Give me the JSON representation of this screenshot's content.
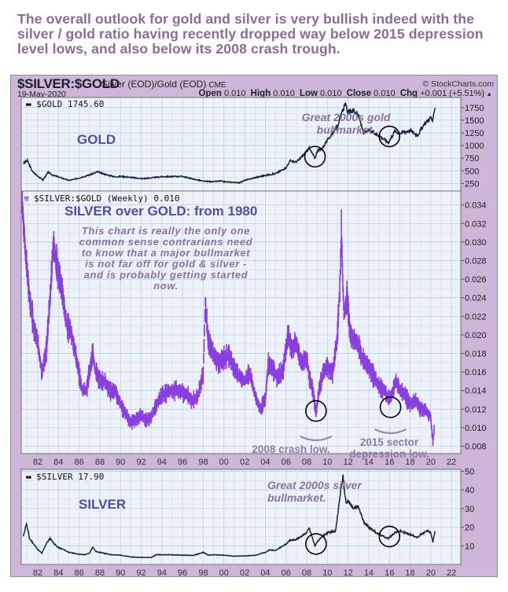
{
  "headline": "The overall outlook for gold and silver is very bullish indeed with the silver / gold ratio having recently dropped way below 2015 depression level lows, and also below its 2008 crash trough.",
  "header": {
    "symbol": "$SILVER:$GOLD",
    "description": "Silver (EOD)/Gold (EOD)",
    "exchange": "CME",
    "credit": "© StockCharts.com",
    "date": "19-May-2020",
    "open_label": "Open",
    "open": "0.010",
    "high_label": "High",
    "high": "0.010",
    "low_label": "Low",
    "low": "0.010",
    "close_label": "Close",
    "close": "0.010",
    "chg_label": "Chg",
    "chg": "+0.001 (+5.51%)",
    "chg_icon": "up-triangle-icon"
  },
  "colors": {
    "frame": "#cdb6d7",
    "plot_bg": "#eef2f8",
    "grid": "#a9d0e3",
    "price_line": "#18243f",
    "ratio_bars": "#8a3fe0",
    "headline": "#8a6c94",
    "panel_label": "#4e4fa0",
    "annotation": "#8a72a0"
  },
  "chart_data": [
    {
      "type": "line",
      "panel": "gold",
      "legend": "$GOLD 1745.60",
      "label": "GOLD",
      "annotation": "Great 2000s gold bullmarket.",
      "y_ticks": [
        "250",
        "500",
        "750",
        "1000",
        "1250",
        "1500",
        "1750"
      ],
      "ylim": [
        100,
        1950
      ],
      "x": [
        1980.6,
        1981.0,
        1981.5,
        1982.0,
        1982.5,
        1983.0,
        1983.5,
        1984.0,
        1985.0,
        1985.5,
        1986.0,
        1987.0,
        1987.8,
        1988.5,
        1989.5,
        1990.0,
        1991.0,
        1992.0,
        1993.0,
        1994.0,
        1995.0,
        1996.0,
        1997.0,
        1998.0,
        1999.0,
        1999.7,
        2000.0,
        2001.0,
        2001.5,
        2002.0,
        2003.0,
        2004.0,
        2005.0,
        2006.0,
        2006.4,
        2007.0,
        2008.0,
        2008.2,
        2008.8,
        2009.0,
        2009.5,
        2010.0,
        2011.0,
        2011.7,
        2012.0,
        2012.5,
        2013.0,
        2013.5,
        2014.0,
        2015.0,
        2015.9,
        2016.5,
        2017.0,
        2018.0,
        2018.7,
        2019.0,
        2019.7,
        2020.0,
        2020.2,
        2020.4
      ],
      "values": [
        650,
        700,
        480,
        400,
        320,
        470,
        410,
        380,
        310,
        330,
        360,
        420,
        480,
        430,
        380,
        390,
        370,
        345,
        360,
        385,
        385,
        390,
        340,
        295,
        285,
        300,
        285,
        270,
        265,
        310,
        365,
        410,
        445,
        560,
        700,
        670,
        880,
        960,
        750,
        880,
        950,
        1100,
        1400,
        1830,
        1650,
        1700,
        1600,
        1250,
        1300,
        1200,
        1060,
        1280,
        1250,
        1300,
        1200,
        1300,
        1500,
        1550,
        1480,
        1745.6
      ]
    },
    {
      "type": "bar",
      "subtype": "weekly-hlc",
      "panel": "ratio",
      "legend": "$SILVER:$GOLD (Weekly) 0.010",
      "label": "SILVER over GOLD: from 1980",
      "annotation": "This chart is really the only one common sense contrarians need to know that a major bullmarket is not far off for gold & silver - and is probably getting started now.",
      "annotation_2008": "2008 crash low.",
      "annotation_2015": "2015 sector depression low.",
      "y_ticks": [
        "0.008",
        "0.010",
        "0.012",
        "0.014",
        "0.016",
        "0.018",
        "0.020",
        "0.022",
        "0.024",
        "0.026",
        "0.028",
        "0.030",
        "0.032",
        "0.034"
      ],
      "ylim": [
        0.0072,
        0.0355
      ],
      "x": [
        1980.5,
        1980.8,
        1981.2,
        1981.6,
        1982.0,
        1982.4,
        1982.8,
        1983.2,
        1983.5,
        1983.9,
        1984.3,
        1984.8,
        1985.3,
        1985.8,
        1986.3,
        1986.7,
        1987.0,
        1987.3,
        1987.6,
        1988.0,
        1988.5,
        1989.0,
        1989.5,
        1990.0,
        1990.5,
        1991.0,
        1991.5,
        1992.0,
        1992.5,
        1993.0,
        1993.5,
        1994.0,
        1994.5,
        1995.0,
        1995.5,
        1996.0,
        1996.5,
        1997.0,
        1997.5,
        1998.0,
        1998.2,
        1998.5,
        1999.0,
        1999.5,
        2000.0,
        2000.5,
        2001.0,
        2001.5,
        2002.0,
        2002.5,
        2003.0,
        2003.5,
        2004.0,
        2004.3,
        2004.8,
        2005.2,
        2005.7,
        2006.2,
        2006.5,
        2007.0,
        2007.5,
        2008.0,
        2008.3,
        2008.6,
        2008.9,
        2009.2,
        2009.6,
        2010.0,
        2010.5,
        2010.9,
        2011.2,
        2011.35,
        2011.6,
        2011.9,
        2012.2,
        2012.6,
        2013.0,
        2013.3,
        2013.7,
        2014.0,
        2014.5,
        2015.0,
        2015.5,
        2015.9,
        2016.2,
        2016.6,
        2017.0,
        2017.5,
        2018.0,
        2018.5,
        2019.0,
        2019.4,
        2019.8,
        2020.0,
        2020.2,
        2020.35
      ],
      "values": [
        0.034,
        0.029,
        0.024,
        0.021,
        0.019,
        0.016,
        0.018,
        0.024,
        0.03,
        0.027,
        0.025,
        0.021,
        0.02,
        0.017,
        0.014,
        0.014,
        0.016,
        0.018,
        0.016,
        0.015,
        0.015,
        0.014,
        0.014,
        0.0125,
        0.0115,
        0.0105,
        0.011,
        0.0112,
        0.0108,
        0.0112,
        0.0125,
        0.0135,
        0.0138,
        0.014,
        0.014,
        0.0138,
        0.0135,
        0.0128,
        0.0135,
        0.016,
        0.0235,
        0.019,
        0.018,
        0.017,
        0.0175,
        0.0178,
        0.0165,
        0.0155,
        0.015,
        0.016,
        0.0135,
        0.012,
        0.013,
        0.017,
        0.016,
        0.0155,
        0.016,
        0.02,
        0.0185,
        0.019,
        0.017,
        0.0175,
        0.015,
        0.014,
        0.0115,
        0.014,
        0.016,
        0.0165,
        0.016,
        0.019,
        0.025,
        0.031,
        0.022,
        0.024,
        0.02,
        0.0195,
        0.019,
        0.0175,
        0.017,
        0.0165,
        0.0155,
        0.0145,
        0.014,
        0.013,
        0.0135,
        0.015,
        0.014,
        0.0135,
        0.0125,
        0.013,
        0.012,
        0.012,
        0.0115,
        0.011,
        0.0085,
        0.01
      ]
    },
    {
      "type": "line",
      "panel": "silver",
      "legend": "$SILVER 17.90",
      "label": "SILVER",
      "annotation": "Great 2000s silver bullmarket.",
      "y_ticks": [
        "10",
        "20",
        "30",
        "40",
        "50"
      ],
      "ylim": [
        0,
        51
      ],
      "x": [
        1980.6,
        1980.9,
        1981.2,
        1981.6,
        1982.0,
        1982.4,
        1982.8,
        1983.2,
        1983.6,
        1984.0,
        1984.5,
        1985.0,
        1985.5,
        1986.0,
        1986.5,
        1987.0,
        1987.3,
        1987.6,
        1988.0,
        1989.0,
        1990.0,
        1991.0,
        1992.0,
        1993.0,
        1993.5,
        1994.0,
        1995.0,
        1996.0,
        1997.0,
        1998.0,
        1998.5,
        1999.0,
        2000.0,
        2001.0,
        2002.0,
        2003.0,
        2004.0,
        2004.4,
        2005.0,
        2006.0,
        2006.4,
        2007.0,
        2008.0,
        2008.2,
        2008.8,
        2009.0,
        2009.5,
        2010.0,
        2010.8,
        2011.3,
        2011.5,
        2011.8,
        2012.0,
        2012.5,
        2013.0,
        2013.5,
        2014.0,
        2015.0,
        2015.9,
        2016.5,
        2017.0,
        2018.0,
        2018.8,
        2019.0,
        2019.7,
        2020.0,
        2020.2,
        2020.4
      ],
      "values": [
        15,
        22,
        14,
        11,
        8,
        6,
        11,
        14,
        11,
        9,
        8,
        6.5,
        6.0,
        5.5,
        5.2,
        6.0,
        9.5,
        7.0,
        6.5,
        5.3,
        5.0,
        4.0,
        3.8,
        3.8,
        5.3,
        5.2,
        5.2,
        5.0,
        4.8,
        6.5,
        5.0,
        5.2,
        5.0,
        4.4,
        4.6,
        4.9,
        6.5,
        7.8,
        7.5,
        11,
        13,
        13.5,
        17,
        20,
        10,
        12,
        15,
        17,
        18,
        40,
        47,
        33,
        34,
        30,
        31,
        23,
        20,
        16,
        14,
        17,
        18,
        16,
        14.5,
        16,
        18,
        17,
        12,
        17.9
      ]
    }
  ],
  "x_axis": {
    "tick_labels": [
      "82",
      "84",
      "86",
      "88",
      "90",
      "92",
      "94",
      "96",
      "98",
      "00",
      "02",
      "04",
      "06",
      "08",
      "10",
      "12",
      "14",
      "16",
      "18",
      "20",
      "22"
    ],
    "range": [
      1980.4,
      2022.9
    ]
  }
}
